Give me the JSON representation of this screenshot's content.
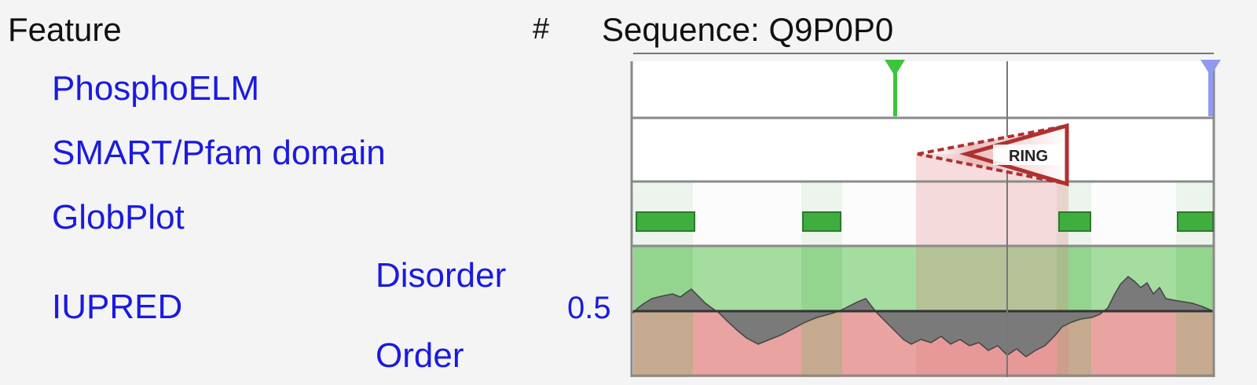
{
  "header": {
    "feature_label": "Feature",
    "count_label": "#",
    "sequence_label": "Sequence: Q9P0P0"
  },
  "tracks": {
    "phosphoelm": "PhosphoELM",
    "smart_pfam": "SMART/Pfam domain",
    "globplot": "GlobPlot",
    "iupred": "IUPRED",
    "iupred_disorder": "Disorder",
    "iupred_order": "Order",
    "iupred_threshold_label": "0.5"
  },
  "domain": {
    "name": "RING"
  },
  "colors": {
    "phospho_green": "#3cc43c",
    "phospho_blue": "#8f9af0",
    "globplot_block": "#3fae3f",
    "disorder_bg": "#a5dca0",
    "order_bg": "#e9a3a0",
    "domain_red": "#b03030",
    "link_blue": "#1a1ae0"
  },
  "icons": {
    "phospho_marker": "triangle-pin-icon",
    "domain_shape": "arrow-domain-icon"
  }
}
